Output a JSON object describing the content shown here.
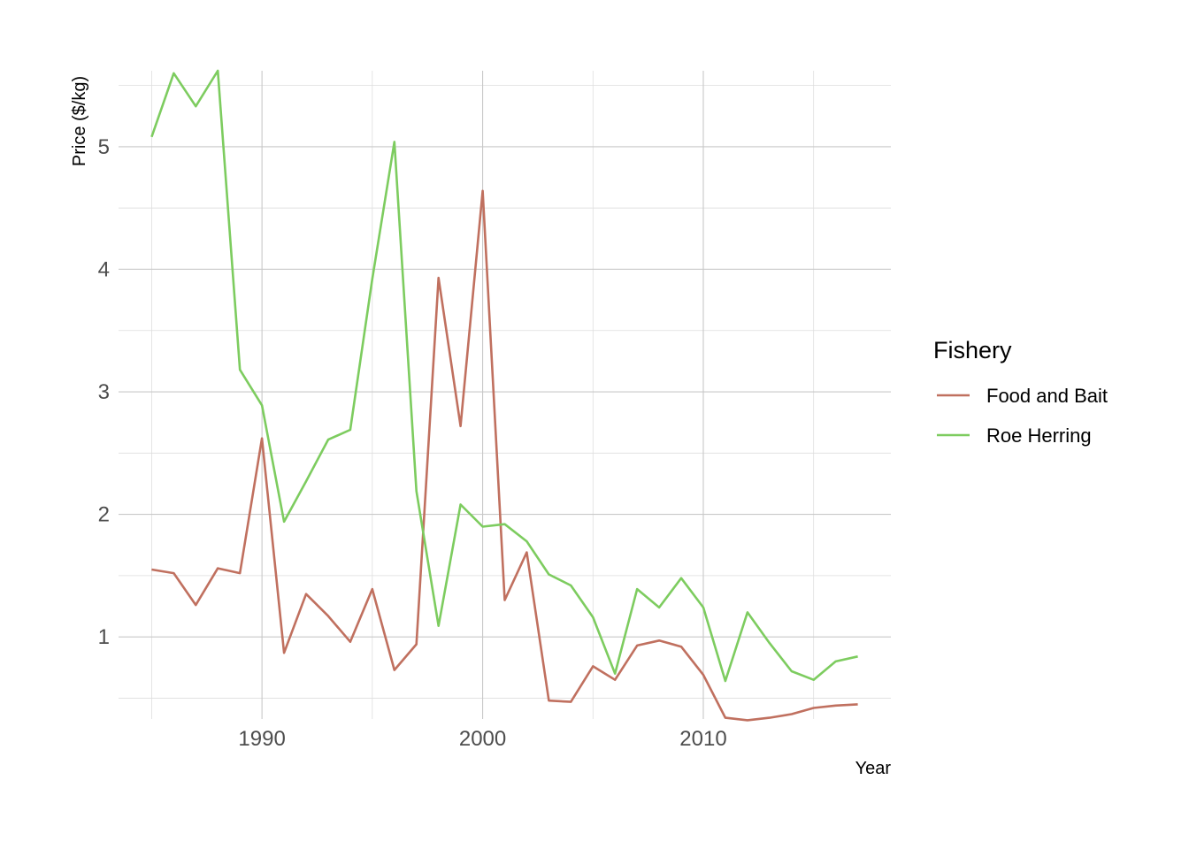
{
  "chart_data": {
    "type": "line",
    "title": "",
    "xlabel": "Year",
    "ylabel": "Price ($/kg)",
    "x_ticks": [
      1990,
      2000,
      2010
    ],
    "y_ticks": [
      1,
      2,
      3,
      4,
      5
    ],
    "xlim": [
      1983.5,
      2018.5
    ],
    "ylim": [
      0.33,
      5.62
    ],
    "grid": true,
    "legend": {
      "title": "Fishery",
      "position": "right"
    },
    "x": [
      1985,
      1986,
      1987,
      1988,
      1989,
      1990,
      1991,
      1992,
      1993,
      1994,
      1995,
      1996,
      1997,
      1998,
      1999,
      2000,
      2001,
      2002,
      2003,
      2004,
      2005,
      2006,
      2007,
      2008,
      2009,
      2010,
      2011,
      2012,
      2013,
      2014,
      2015,
      2016,
      2017
    ],
    "series": [
      {
        "name": "Food and Bait",
        "color": "#c0705f",
        "values": [
          1.55,
          1.52,
          1.26,
          1.56,
          1.52,
          2.62,
          0.87,
          1.35,
          1.17,
          0.96,
          1.39,
          0.73,
          0.94,
          3.93,
          2.72,
          4.64,
          1.3,
          1.69,
          0.48,
          0.47,
          0.76,
          0.65,
          0.93,
          0.97,
          0.92,
          0.69,
          0.34,
          0.32,
          0.34,
          0.37,
          0.42,
          0.44,
          0.45
        ]
      },
      {
        "name": "Roe Herring",
        "color": "#7dcc5f",
        "values": [
          5.08,
          5.6,
          5.33,
          5.62,
          3.18,
          2.89,
          1.94,
          2.27,
          2.61,
          2.69,
          3.92,
          5.04,
          2.19,
          1.09,
          2.08,
          1.9,
          1.92,
          1.78,
          1.51,
          1.42,
          1.16,
          0.7,
          1.39,
          1.24,
          1.48,
          1.24,
          0.64,
          1.2,
          0.95,
          0.72,
          0.65,
          0.8,
          0.84
        ]
      }
    ]
  }
}
